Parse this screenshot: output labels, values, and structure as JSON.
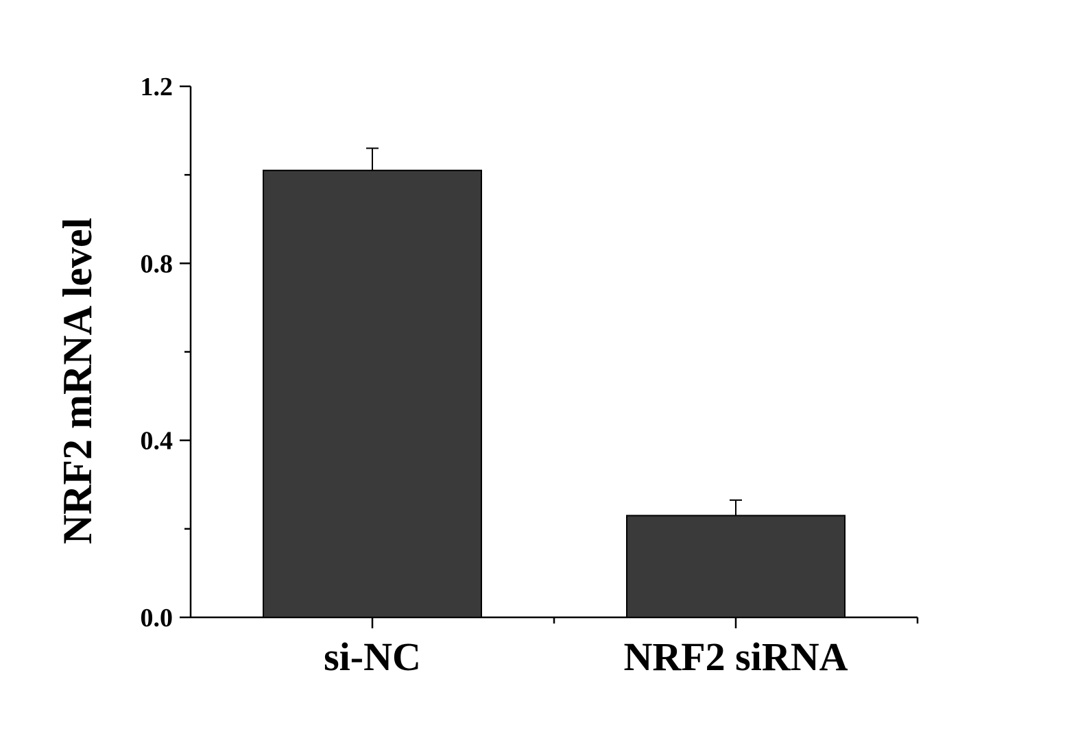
{
  "chart_data": {
    "type": "bar",
    "categories": [
      "si-NC",
      "NRF2 siRNA"
    ],
    "values": [
      1.01,
      0.23
    ],
    "errors": [
      0.05,
      0.035
    ],
    "title": "",
    "xlabel": "",
    "ylabel": "NRF2 mRNA level",
    "ylim": [
      0,
      1.2
    ],
    "yticks": [
      0,
      0.4,
      0.8,
      1.2
    ],
    "yticks_labels": [
      "0.0",
      "0.4",
      "0.8",
      "1.2"
    ],
    "y_minor_ticks": [
      0.2,
      0.6,
      1.0
    ],
    "grid": false,
    "legend": "none",
    "bar_color": "#3a3a3a",
    "axis_color": "#000000"
  }
}
